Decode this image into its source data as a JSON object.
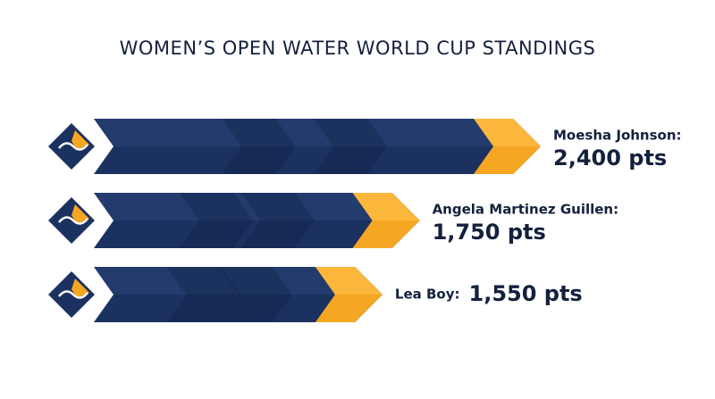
{
  "chart_data": {
    "type": "bar",
    "title": "WOMEN’S OPEN WATER WORLD CUP STANDINGS",
    "categories": [
      "Moesha Johnson:",
      "Angela Martinez Guillen:",
      "Lea Boy:"
    ],
    "values": [
      2400,
      1750,
      1550
    ],
    "value_labels": [
      "2,400 pts",
      "1,750 pts",
      "1,550 pts"
    ],
    "color": "#1b3160",
    "accent_color": "#f5a623"
  }
}
